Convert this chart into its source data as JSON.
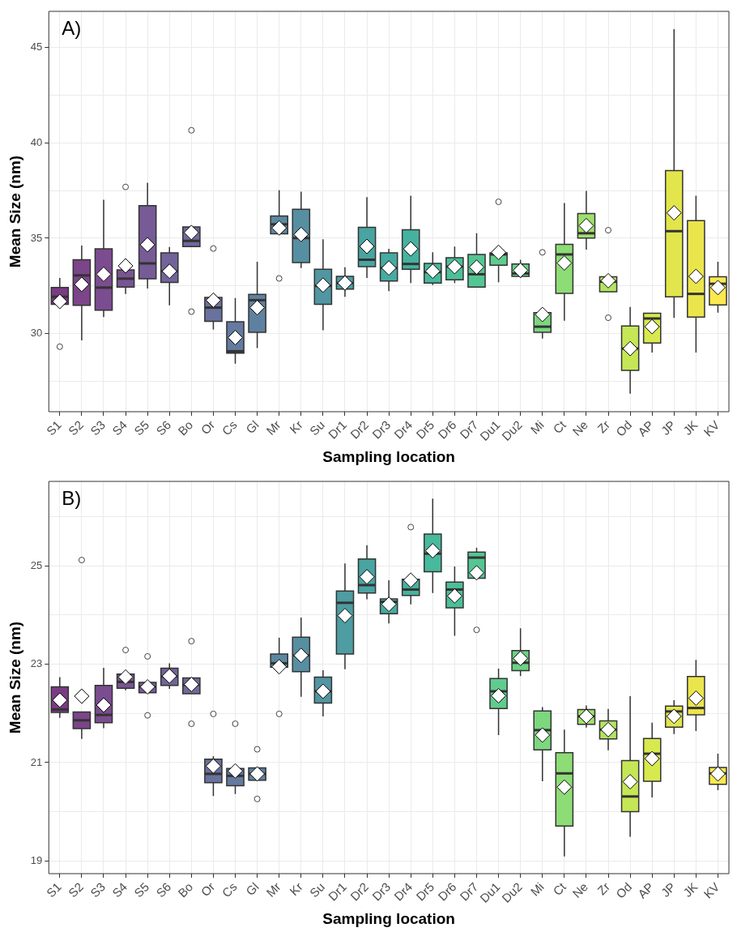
{
  "chart_data": [
    {
      "type": "box",
      "title": "A)",
      "xlabel": "Sampling location",
      "ylabel": "Mean Size (nm)",
      "grid": true,
      "categories": [
        "S1",
        "S2",
        "S3",
        "S4",
        "S5",
        "S6",
        "Bo",
        "Or",
        "Cs",
        "Gl",
        "Mr",
        "Kr",
        "Su",
        "Dr1",
        "Dr2",
        "Dr3",
        "Dr4",
        "Dr5",
        "Dr6",
        "Dr7",
        "Du1",
        "Du2",
        "Mi",
        "Ct",
        "Ne",
        "Zr",
        "Od",
        "AP",
        "JP",
        "JK",
        "KV"
      ],
      "colors": [
        "#7b3b84",
        "#7c4489",
        "#7b4c8f",
        "#795493",
        "#765b97",
        "#72639a",
        "#6e6a9c",
        "#69729e",
        "#647a9f",
        "#5f81a0",
        "#5a88a1",
        "#568fa2",
        "#5196a2",
        "#4d9da2",
        "#49a4a2",
        "#46aba1",
        "#45b29f",
        "#47b99c",
        "#4cbf98",
        "#54c693",
        "#5fcc8d",
        "#6cd286",
        "#7cd77e",
        "#8ddc75",
        "#9fe06b",
        "#b2e460",
        "#c5e756",
        "#d8e94e",
        "#e2e64c",
        "#ebe54c",
        "#fbe94f"
      ],
      "ylim": [
        25.9,
        46.9
      ],
      "yticks": [
        {
          "value": 27.5,
          "label": null
        },
        30,
        {
          "value": 32.5,
          "label": null
        },
        35,
        {
          "value": 37.5,
          "label": null
        },
        40,
        {
          "value": 42.5,
          "label": null
        },
        45
      ],
      "boxes": [
        {
          "low": 31.53,
          "q1": 31.53,
          "median": 31.93,
          "q3": 32.42,
          "high": 32.91,
          "mean": 31.68,
          "outliers": [
            29.31
          ]
        },
        {
          "low": 29.64,
          "q1": 31.48,
          "median": 33.05,
          "q3": 33.87,
          "high": 34.61,
          "mean": 32.58
        },
        {
          "low": 30.86,
          "q1": 31.22,
          "median": 32.41,
          "q3": 34.44,
          "high": 37.02,
          "mean": 33.11
        },
        {
          "low": 32.08,
          "q1": 32.44,
          "median": 32.88,
          "q3": 33.34,
          "high": 33.34,
          "mean": 33.55,
          "outliers": [
            37.69
          ]
        },
        {
          "low": 32.36,
          "q1": 32.87,
          "median": 33.68,
          "q3": 36.71,
          "high": 37.91,
          "mean": 34.66
        },
        {
          "low": 31.48,
          "q1": 32.68,
          "median": 33.27,
          "q3": 34.23,
          "high": 34.54,
          "mean": 33.27
        },
        {
          "low": 34.56,
          "q1": 34.56,
          "median": 34.86,
          "q3": 35.59,
          "high": 35.59,
          "mean": 35.3,
          "outliers": [
            40.66,
            31.15
          ]
        },
        {
          "low": 30.21,
          "q1": 30.64,
          "median": 31.36,
          "q3": 31.89,
          "high": 31.89,
          "mean": 31.75,
          "outliers": [
            34.46
          ]
        },
        {
          "low": 28.42,
          "q1": 28.97,
          "median": 29.07,
          "q3": 30.62,
          "high": 31.86,
          "mean": 29.79
        },
        {
          "low": 29.24,
          "q1": 30.07,
          "median": 31.75,
          "q3": 32.05,
          "high": 33.77,
          "mean": 31.36
        },
        {
          "low": 35.23,
          "q1": 35.23,
          "median": 35.73,
          "q3": 36.17,
          "high": 37.52,
          "mean": 35.54,
          "outliers": [
            32.89
          ]
        },
        {
          "low": 33.44,
          "q1": 33.72,
          "median": 35.01,
          "q3": 36.52,
          "high": 37.44,
          "mean": 35.2
        },
        {
          "low": 30.17,
          "q1": 31.53,
          "median": 32.5,
          "q3": 33.37,
          "high": 34.94,
          "mean": 32.54
        },
        {
          "low": 31.93,
          "q1": 32.33,
          "median": 32.65,
          "q3": 33.0,
          "high": 33.48,
          "mean": 32.65
        },
        {
          "low": 32.91,
          "q1": 33.51,
          "median": 33.87,
          "q3": 35.57,
          "high": 37.16,
          "mean": 34.57
        },
        {
          "low": 32.22,
          "q1": 32.75,
          "median": 33.44,
          "q3": 34.23,
          "high": 34.44,
          "mean": 33.44
        },
        {
          "low": 32.65,
          "q1": 33.37,
          "median": 33.65,
          "q3": 35.44,
          "high": 37.23,
          "mean": 34.44
        },
        {
          "low": 32.54,
          "q1": 32.65,
          "median": 33.22,
          "q3": 33.68,
          "high": 34.26,
          "mean": 33.27
        },
        {
          "low": 32.65,
          "q1": 32.82,
          "median": 33.51,
          "q3": 33.98,
          "high": 34.56,
          "mean": 33.51
        },
        {
          "low": 32.44,
          "q1": 32.44,
          "median": 33.11,
          "q3": 34.15,
          "high": 35.26,
          "mean": 33.48
        },
        {
          "low": 32.69,
          "q1": 33.58,
          "median": 34.15,
          "q3": 34.23,
          "high": 34.23,
          "mean": 34.26,
          "outliers": [
            36.91
          ]
        },
        {
          "low": 32.91,
          "q1": 33.0,
          "median": 33.15,
          "q3": 33.65,
          "high": 33.87,
          "mean": 33.32
        },
        {
          "low": 29.74,
          "q1": 30.07,
          "median": 30.36,
          "q3": 31.1,
          "high": 31.1,
          "mean": 31.0,
          "outliers": [
            34.26
          ]
        },
        {
          "low": 30.67,
          "q1": 32.11,
          "median": 34.15,
          "q3": 34.68,
          "high": 36.85,
          "mean": 33.7
        },
        {
          "low": 34.4,
          "q1": 35.01,
          "median": 35.26,
          "q3": 36.29,
          "high": 37.48,
          "mean": 35.66
        },
        {
          "low": 32.19,
          "q1": 32.19,
          "median": 32.72,
          "q3": 32.98,
          "high": 32.98,
          "mean": 32.77,
          "outliers": [
            35.42,
            30.83
          ]
        },
        {
          "low": 26.85,
          "q1": 28.07,
          "median": 29.21,
          "q3": 30.4,
          "high": 31.4,
          "mean": 29.21
        },
        {
          "low": 29.0,
          "q1": 29.5,
          "median": 30.79,
          "q3": 31.07,
          "high": 31.07,
          "mean": 30.36
        },
        {
          "low": 30.82,
          "q1": 31.93,
          "median": 35.37,
          "q3": 38.55,
          "high": 45.97,
          "mean": 36.33
        },
        {
          "low": 29.0,
          "q1": 30.86,
          "median": 32.08,
          "q3": 35.92,
          "high": 37.23,
          "mean": 33.0
        },
        {
          "low": 31.1,
          "q1": 31.5,
          "median": 32.61,
          "q3": 32.98,
          "high": 33.77,
          "mean": 32.41
        }
      ]
    },
    {
      "type": "box",
      "title": "B)",
      "xlabel": "Sampling location",
      "ylabel": "Mean Size (nm)",
      "grid": true,
      "categories": [
        "S1",
        "S2",
        "S3",
        "S4",
        "S5",
        "S6",
        "Bo",
        "Or",
        "Cs",
        "Gl",
        "Mr",
        "Kr",
        "Su",
        "Dr1",
        "Dr2",
        "Dr3",
        "Dr4",
        "Dr5",
        "Dr6",
        "Dr7",
        "Du1",
        "Du2",
        "Mi",
        "Ct",
        "Ne",
        "Zr",
        "Od",
        "AP",
        "JP",
        "JK",
        "KV"
      ],
      "colors": [
        "#7b3b84",
        "#7c4489",
        "#7b4c8f",
        "#795493",
        "#765b97",
        "#72639a",
        "#6e6a9c",
        "#69729e",
        "#647a9f",
        "#5f81a0",
        "#5a88a1",
        "#568fa2",
        "#5196a2",
        "#4d9da2",
        "#49a4a2",
        "#46aba1",
        "#45b29f",
        "#47b99c",
        "#4cbf98",
        "#54c693",
        "#5fcc8d",
        "#6cd286",
        "#7cd77e",
        "#8ddc75",
        "#9fe06b",
        "#b2e460",
        "#c5e756",
        "#d8e94e",
        "#e2e64c",
        "#ebe54c",
        "#fbe94f"
      ],
      "ylim": [
        18.74,
        26.72
      ],
      "yticks": [
        19,
        {
          "value": 20,
          "label": null
        },
        21,
        {
          "value": 22,
          "label": null
        },
        23,
        {
          "value": 24,
          "label": null
        },
        25,
        {
          "value": 26,
          "label": null
        }
      ],
      "boxes": [
        {
          "low": 21.91,
          "q1": 22.02,
          "median": 22.08,
          "q3": 22.54,
          "high": 22.74,
          "mean": 22.27
        },
        {
          "low": 21.48,
          "q1": 21.69,
          "median": 21.86,
          "q3": 22.03,
          "high": 22.03,
          "mean": 22.35,
          "outliers": [
            25.12
          ]
        },
        {
          "low": 21.7,
          "q1": 21.81,
          "median": 21.97,
          "q3": 22.57,
          "high": 22.93,
          "mean": 22.17
        },
        {
          "low": 22.47,
          "q1": 22.51,
          "median": 22.64,
          "q3": 22.8,
          "high": 22.8,
          "mean": 22.74,
          "outliers": [
            23.29
          ]
        },
        {
          "low": 22.42,
          "q1": 22.42,
          "median": 22.54,
          "q3": 22.63,
          "high": 22.63,
          "mean": 22.54,
          "outliers": [
            23.16,
            21.96
          ]
        },
        {
          "low": 22.5,
          "q1": 22.57,
          "median": 22.75,
          "q3": 22.92,
          "high": 23.02,
          "mean": 22.76
        },
        {
          "low": 22.4,
          "q1": 22.4,
          "median": 22.58,
          "q3": 22.72,
          "high": 22.72,
          "mean": 22.59,
          "outliers": [
            23.47,
            21.79
          ]
        },
        {
          "low": 20.32,
          "q1": 20.59,
          "median": 20.77,
          "q3": 21.07,
          "high": 21.13,
          "mean": 20.93,
          "outliers": [
            21.99
          ]
        },
        {
          "low": 20.36,
          "q1": 20.53,
          "median": 20.73,
          "q3": 20.88,
          "high": 20.88,
          "mean": 20.83,
          "outliers": [
            21.79
          ]
        },
        {
          "low": 20.64,
          "q1": 20.64,
          "median": 20.77,
          "q3": 20.89,
          "high": 20.89,
          "mean": 20.77,
          "outliers": [
            21.27,
            20.26
          ]
        },
        {
          "low": 22.94,
          "q1": 22.94,
          "median": 23.02,
          "q3": 23.21,
          "high": 23.54,
          "mean": 22.95,
          "outliers": [
            21.99
          ]
        },
        {
          "low": 22.34,
          "q1": 22.85,
          "median": 23.18,
          "q3": 23.55,
          "high": 23.95,
          "mean": 23.18
        },
        {
          "low": 21.94,
          "q1": 22.21,
          "median": 22.45,
          "q3": 22.74,
          "high": 22.88,
          "mean": 22.45
        },
        {
          "low": 22.9,
          "q1": 23.21,
          "median": 24.25,
          "q3": 24.49,
          "high": 25.05,
          "mean": 23.99
        },
        {
          "low": 24.32,
          "q1": 24.45,
          "median": 24.61,
          "q3": 25.14,
          "high": 25.42,
          "mean": 24.78
        },
        {
          "low": 23.83,
          "q1": 24.03,
          "median": 24.27,
          "q3": 24.33,
          "high": 24.71,
          "mean": 24.22
        },
        {
          "low": 24.22,
          "q1": 24.4,
          "median": 24.52,
          "q3": 24.73,
          "high": 24.73,
          "mean": 24.71,
          "outliers": [
            25.79
          ]
        },
        {
          "low": 24.45,
          "q1": 24.88,
          "median": 25.25,
          "q3": 25.65,
          "high": 26.37,
          "mean": 25.31
        },
        {
          "low": 23.58,
          "q1": 24.15,
          "median": 24.52,
          "q3": 24.67,
          "high": 24.99,
          "mean": 24.39
        },
        {
          "low": 24.75,
          "q1": 24.75,
          "median": 25.17,
          "q3": 25.28,
          "high": 25.37,
          "mean": 24.86,
          "outliers": [
            23.7
          ]
        },
        {
          "low": 21.56,
          "q1": 22.1,
          "median": 22.45,
          "q3": 22.71,
          "high": 22.91,
          "mean": 22.36
        },
        {
          "low": 22.76,
          "q1": 22.87,
          "median": 23.03,
          "q3": 23.28,
          "high": 23.73,
          "mean": 23.12
        },
        {
          "low": 20.62,
          "q1": 21.26,
          "median": 21.66,
          "q3": 22.05,
          "high": 22.13,
          "mean": 21.56
        },
        {
          "low": 19.09,
          "q1": 19.71,
          "median": 20.78,
          "q3": 21.2,
          "high": 21.67,
          "mean": 20.5
        },
        {
          "low": 21.71,
          "q1": 21.78,
          "median": 21.94,
          "q3": 22.08,
          "high": 22.16,
          "mean": 21.94
        },
        {
          "low": 21.25,
          "q1": 21.48,
          "median": 21.67,
          "q3": 21.85,
          "high": 22.09,
          "mean": 21.67
        },
        {
          "low": 19.49,
          "q1": 20.0,
          "median": 20.31,
          "q3": 21.04,
          "high": 22.35,
          "mean": 20.61
        },
        {
          "low": 20.29,
          "q1": 20.62,
          "median": 21.18,
          "q3": 21.49,
          "high": 21.81,
          "mean": 21.08
        },
        {
          "low": 21.58,
          "q1": 21.72,
          "median": 22.04,
          "q3": 22.15,
          "high": 22.27,
          "mean": 21.94
        },
        {
          "low": 21.64,
          "q1": 21.97,
          "median": 22.11,
          "q3": 22.75,
          "high": 23.09,
          "mean": 22.31
        },
        {
          "low": 20.44,
          "q1": 20.56,
          "median": 20.78,
          "q3": 20.9,
          "high": 21.18,
          "mean": 20.77
        }
      ]
    }
  ]
}
